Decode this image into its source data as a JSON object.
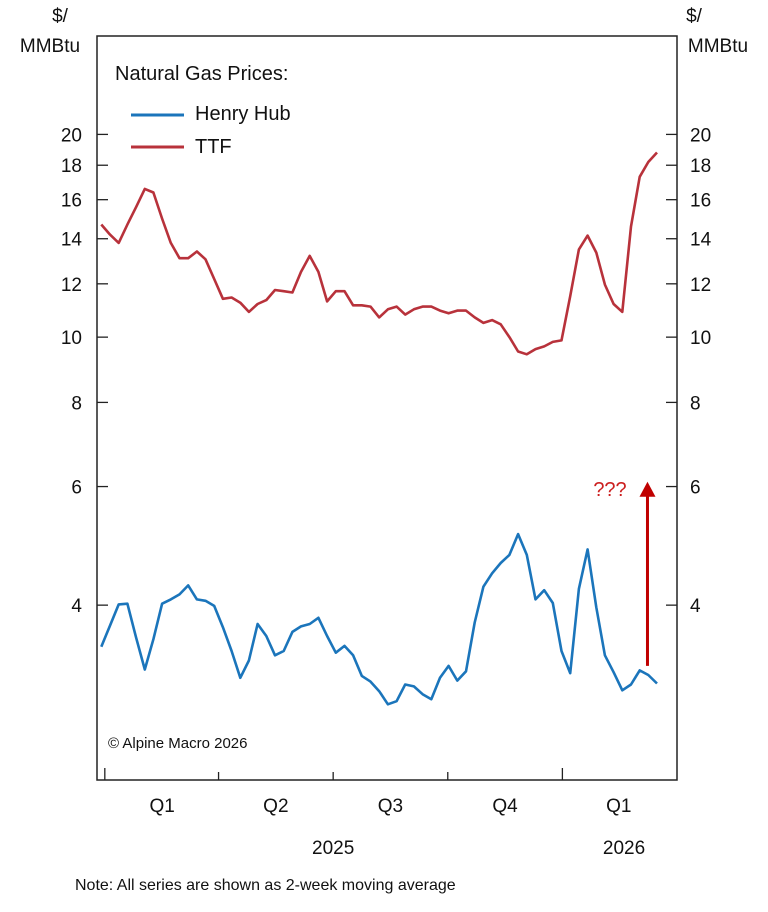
{
  "chart_data": {
    "type": "line",
    "title": "Natural Gas Prices:",
    "ylabel_left": [
      "$/",
      "MMBtu"
    ],
    "ylabel_right": [
      "$/",
      "MMBtu"
    ],
    "yscale": "log",
    "ylim": [
      2.2,
      28
    ],
    "yticks": [
      4,
      6,
      8,
      10,
      12,
      14,
      16,
      18,
      20
    ],
    "x_unit": "weeks since end of Dec 2024",
    "xlim": [
      -0.5,
      66.3
    ],
    "quarter_ticks": [
      0.4,
      13.5,
      26.7,
      39.9,
      53.1
    ],
    "quarter_labels": [
      {
        "label": "Q1",
        "at": 7
      },
      {
        "label": "Q2",
        "at": 20.1
      },
      {
        "label": "Q3",
        "at": 33.3
      },
      {
        "label": "Q4",
        "at": 46.5
      },
      {
        "label": "Q1",
        "at": 59.6
      }
    ],
    "year_labels": [
      {
        "label": "2025",
        "at": 26.7
      },
      {
        "label": "2026",
        "at": 60.2
      }
    ],
    "legend_position": "top-left",
    "series": [
      {
        "name": "Henry Hub",
        "color": "#1b75bb",
        "values": [
          3.47,
          3.73,
          4.01,
          4.02,
          3.58,
          3.21,
          3.56,
          4.02,
          4.08,
          4.15,
          4.28,
          4.08,
          4.06,
          3.99,
          3.71,
          3.42,
          3.12,
          3.31,
          3.75,
          3.6,
          3.37,
          3.42,
          3.65,
          3.72,
          3.75,
          3.83,
          3.6,
          3.4,
          3.48,
          3.37,
          3.14,
          3.08,
          2.98,
          2.85,
          2.88,
          3.05,
          3.03,
          2.95,
          2.9,
          3.12,
          3.25,
          3.09,
          3.19,
          3.77,
          4.26,
          4.46,
          4.62,
          4.75,
          5.1,
          4.75,
          4.08,
          4.21,
          4.03,
          3.42,
          3.17,
          4.23,
          4.84,
          3.97,
          3.37,
          3.18,
          2.99,
          3.05,
          3.2,
          3.15,
          3.06
        ]
      },
      {
        "name": "TTF",
        "color": "#b8323b",
        "values": [
          14.7,
          14.2,
          13.8,
          14.7,
          15.6,
          16.6,
          16.4,
          15.0,
          13.8,
          13.1,
          13.1,
          13.4,
          13.05,
          12.2,
          11.4,
          11.45,
          11.25,
          10.9,
          11.2,
          11.35,
          11.75,
          11.7,
          11.65,
          12.5,
          13.2,
          12.5,
          11.3,
          11.7,
          11.7,
          11.15,
          11.15,
          11.1,
          10.7,
          11.0,
          11.1,
          10.8,
          11.0,
          11.1,
          11.1,
          10.95,
          10.85,
          10.95,
          10.95,
          10.7,
          10.5,
          10.6,
          10.45,
          10.0,
          9.52,
          9.43,
          9.6,
          9.69,
          9.84,
          9.89,
          11.5,
          13.5,
          14.15,
          13.35,
          11.97,
          11.2,
          10.9,
          14.6,
          17.3,
          18.2,
          18.8
        ]
      }
    ],
    "annotations": [
      {
        "text": "???",
        "color": "#cc1f1f",
        "arrow_from_value": 3.25,
        "arrow_to_value": 6.1,
        "at_week": 62.9
      },
      {
        "text": "© Alpine Macro 2026"
      }
    ],
    "note": "Note: All series are shown as 2-week moving average"
  }
}
